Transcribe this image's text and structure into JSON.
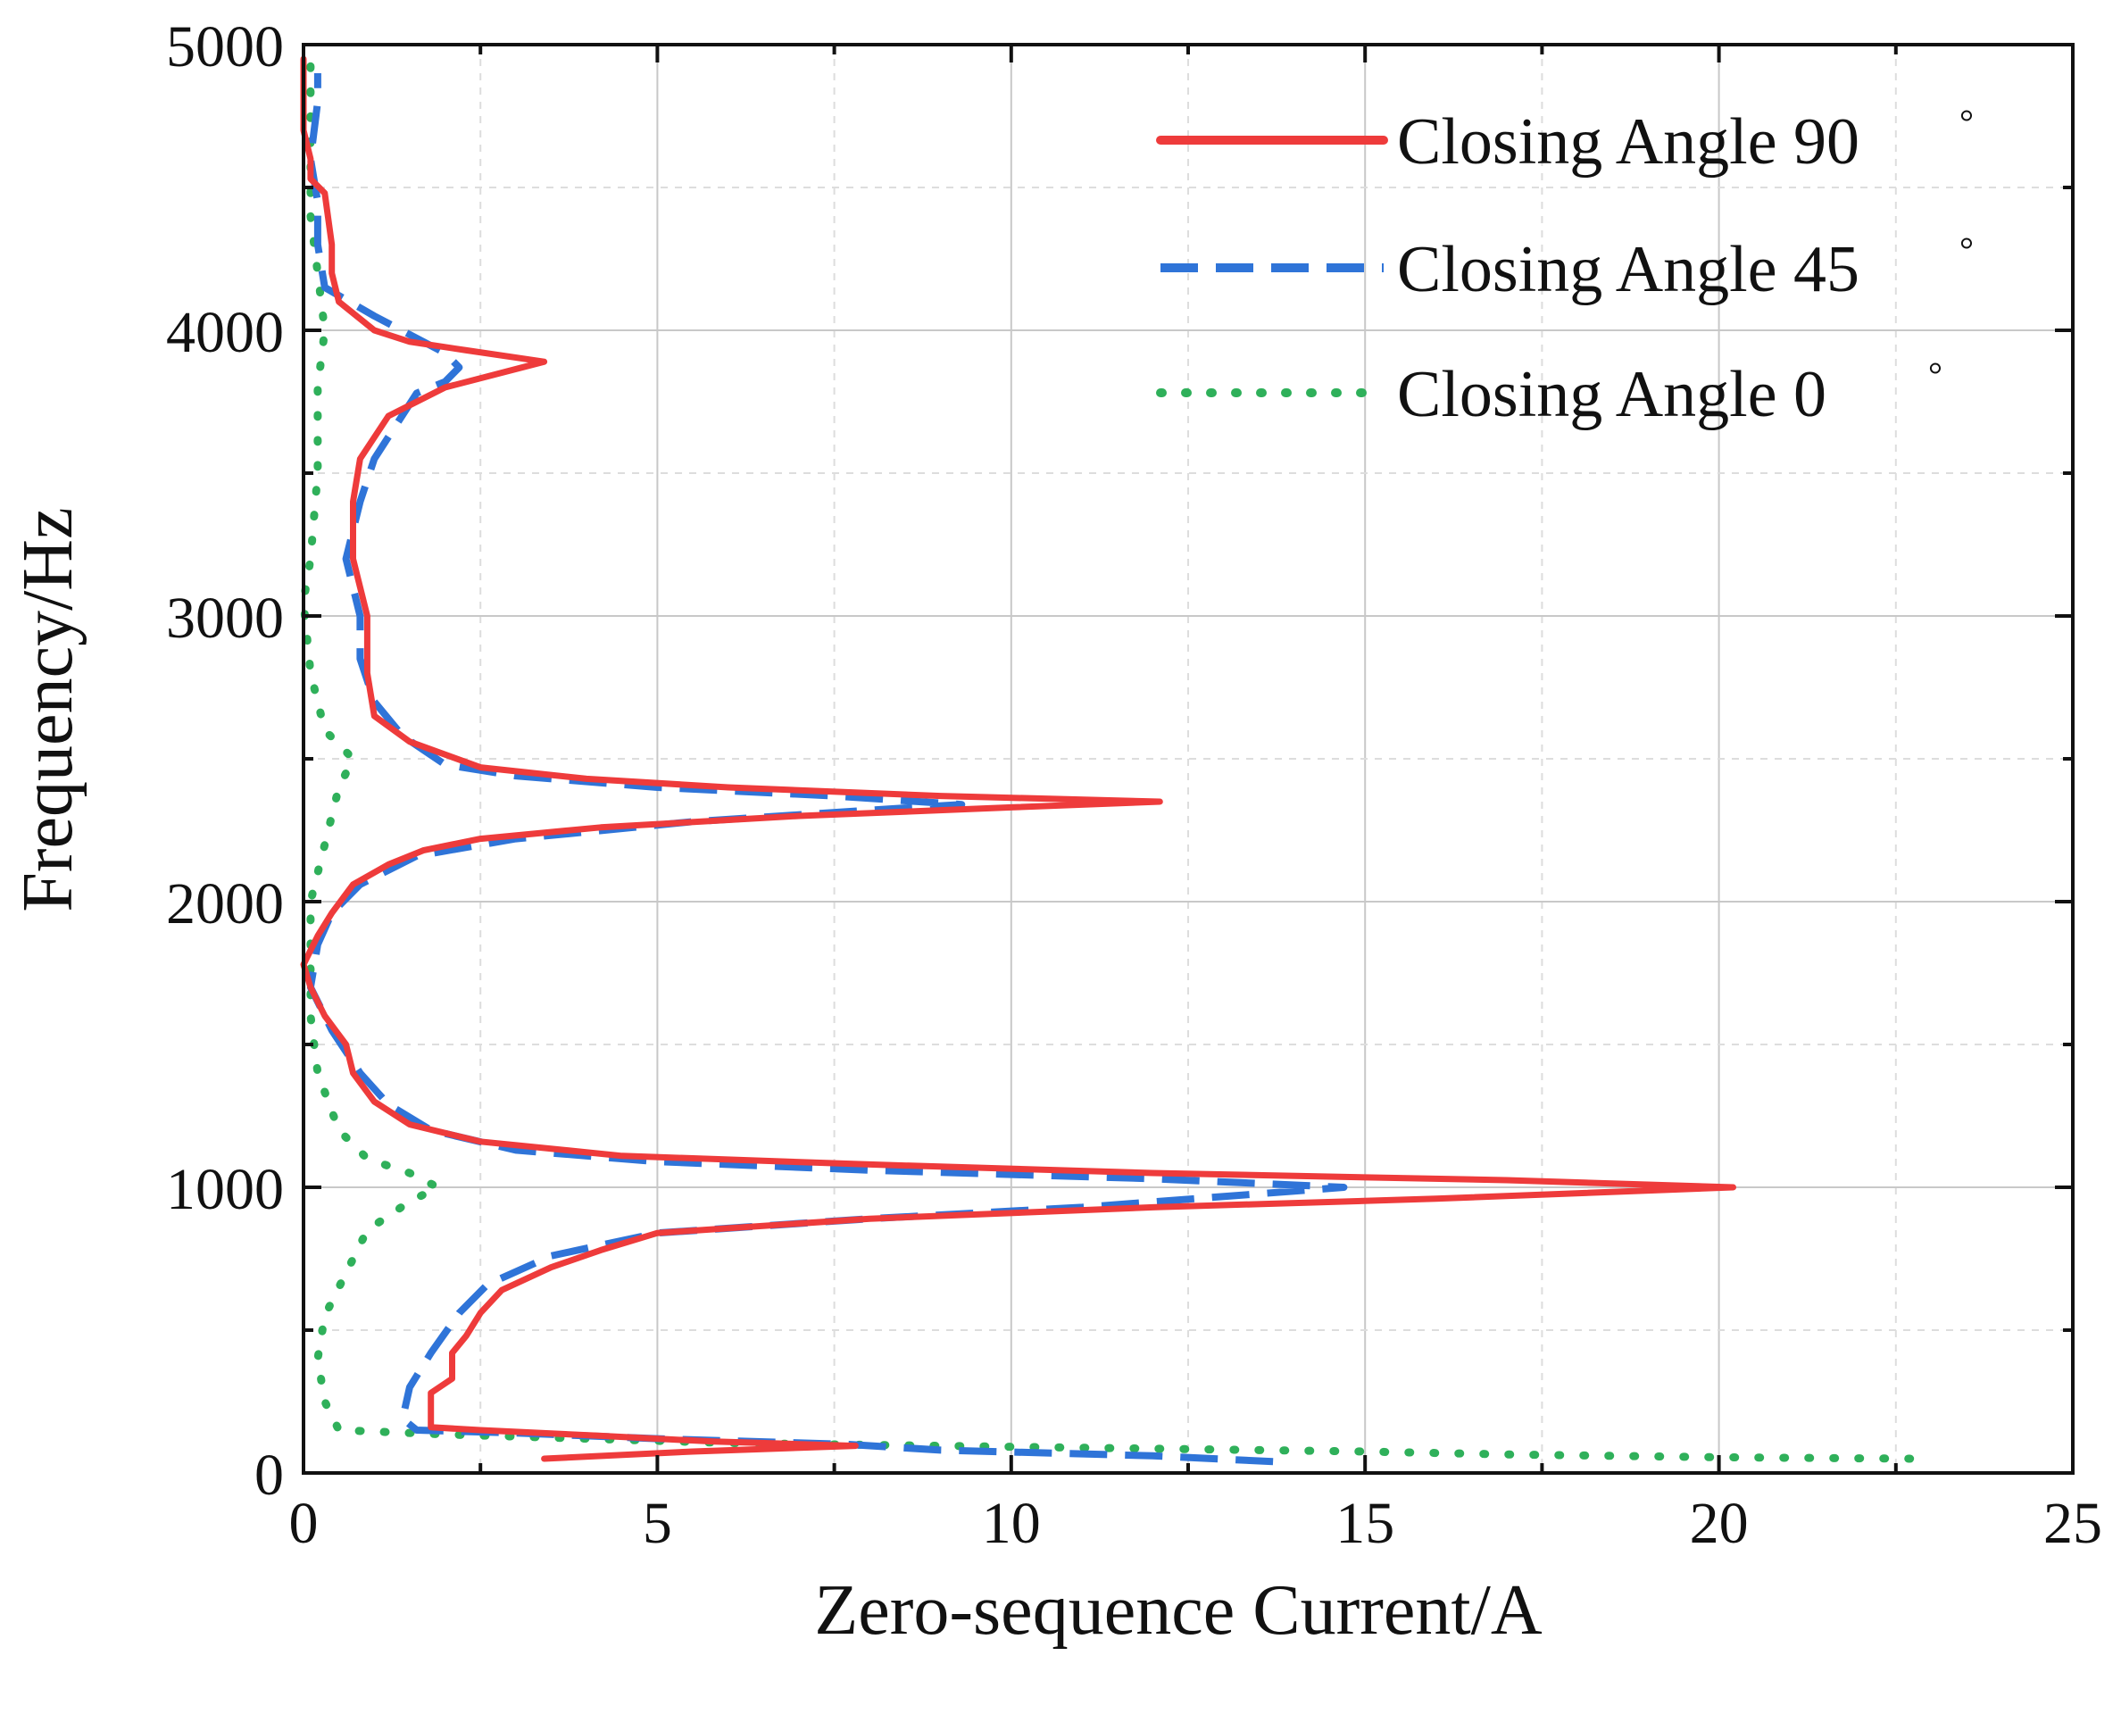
{
  "colors": {
    "series_90": "#ee3b3b",
    "series_45": "#2f74d8",
    "series_0": "#2fb05a",
    "axis": "#111111",
    "grid_major": "#c8c8c8",
    "grid_minor": "#dddddd"
  },
  "chart_data": {
    "type": "line",
    "title": "",
    "xlabel": "Zero-sequence Current/A",
    "ylabel": "Frequency/Hz",
    "xlim": [
      0,
      25
    ],
    "ylim": [
      0,
      5000
    ],
    "xticks": [
      0,
      5,
      10,
      15,
      20,
      25
    ],
    "yticks": [
      0,
      1000,
      2000,
      3000,
      4000,
      5000
    ],
    "xtick_labels": [
      "0",
      "5",
      "10",
      "15",
      "20",
      "25"
    ],
    "ytick_labels": [
      "0",
      "1000",
      "2000",
      "3000",
      "4000",
      "5000"
    ],
    "grid": true,
    "legend": "top-right",
    "series": [
      {
        "name": "Closing Angle 90°",
        "legend_text": "Closing Angle 90",
        "style": "solid",
        "points": [
          [
            3.4,
            50
          ],
          [
            5.5,
            75
          ],
          [
            7.8,
            95
          ],
          [
            5.8,
            110
          ],
          [
            4.2,
            130
          ],
          [
            2.5,
            150
          ],
          [
            1.8,
            160
          ],
          [
            1.8,
            200
          ],
          [
            1.8,
            280
          ],
          [
            2.1,
            330
          ],
          [
            2.1,
            420
          ],
          [
            2.3,
            480
          ],
          [
            2.5,
            560
          ],
          [
            2.8,
            640
          ],
          [
            3.5,
            720
          ],
          [
            4.2,
            780
          ],
          [
            5.0,
            840
          ],
          [
            8.0,
            890
          ],
          [
            12.0,
            930
          ],
          [
            16.0,
            960
          ],
          [
            20.2,
            1000
          ],
          [
            17.0,
            1025
          ],
          [
            12.0,
            1050
          ],
          [
            8.0,
            1080
          ],
          [
            4.5,
            1110
          ],
          [
            2.5,
            1160
          ],
          [
            1.5,
            1220
          ],
          [
            1.0,
            1300
          ],
          [
            0.7,
            1400
          ],
          [
            0.6,
            1500
          ],
          [
            0.3,
            1600
          ],
          [
            0.1,
            1700
          ],
          [
            0.0,
            1780
          ],
          [
            0.2,
            1880
          ],
          [
            0.4,
            1960
          ],
          [
            0.7,
            2060
          ],
          [
            1.2,
            2130
          ],
          [
            1.7,
            2180
          ],
          [
            2.5,
            2220
          ],
          [
            4.2,
            2260
          ],
          [
            7.0,
            2300
          ],
          [
            10.0,
            2330
          ],
          [
            12.1,
            2350
          ],
          [
            9.0,
            2370
          ],
          [
            6.0,
            2400
          ],
          [
            4.0,
            2430
          ],
          [
            2.5,
            2470
          ],
          [
            1.5,
            2560
          ],
          [
            1.0,
            2650
          ],
          [
            0.9,
            2800
          ],
          [
            0.9,
            3000
          ],
          [
            0.7,
            3200
          ],
          [
            0.7,
            3400
          ],
          [
            0.8,
            3550
          ],
          [
            1.2,
            3700
          ],
          [
            2.0,
            3800
          ],
          [
            3.4,
            3890
          ],
          [
            2.3,
            3930
          ],
          [
            1.5,
            3960
          ],
          [
            1.0,
            4000
          ],
          [
            0.5,
            4100
          ],
          [
            0.4,
            4200
          ],
          [
            0.4,
            4300
          ],
          [
            0.3,
            4480
          ],
          [
            0.1,
            4530
          ],
          [
            0.1,
            4600
          ],
          [
            0.0,
            4700
          ],
          [
            0.0,
            4950
          ]
        ]
      },
      {
        "name": "Closing Angle 45°",
        "legend_text": "Closing Angle 45",
        "style": "dashed",
        "points": [
          [
            13.7,
            40
          ],
          [
            12.0,
            60
          ],
          [
            9.0,
            80
          ],
          [
            7.7,
            100
          ],
          [
            5.0,
            120
          ],
          [
            3.0,
            140
          ],
          [
            1.6,
            150
          ],
          [
            1.4,
            190
          ],
          [
            1.5,
            300
          ],
          [
            1.8,
            420
          ],
          [
            2.2,
            560
          ],
          [
            2.6,
            660
          ],
          [
            3.5,
            760
          ],
          [
            5.0,
            840
          ],
          [
            8.0,
            890
          ],
          [
            11.0,
            930
          ],
          [
            14.7,
            1000
          ],
          [
            12.0,
            1030
          ],
          [
            8.0,
            1060
          ],
          [
            5.0,
            1090
          ],
          [
            3.0,
            1130
          ],
          [
            1.8,
            1200
          ],
          [
            1.2,
            1290
          ],
          [
            0.8,
            1400
          ],
          [
            0.4,
            1550
          ],
          [
            0.1,
            1700
          ],
          [
            0.2,
            1850
          ],
          [
            0.4,
            1960
          ],
          [
            0.8,
            2060
          ],
          [
            1.6,
            2160
          ],
          [
            3.0,
            2220
          ],
          [
            5.5,
            2280
          ],
          [
            8.0,
            2320
          ],
          [
            9.3,
            2340
          ],
          [
            7.5,
            2370
          ],
          [
            5.0,
            2400
          ],
          [
            3.0,
            2440
          ],
          [
            2.0,
            2480
          ],
          [
            1.4,
            2580
          ],
          [
            1.0,
            2700
          ],
          [
            0.8,
            2850
          ],
          [
            0.8,
            3000
          ],
          [
            0.6,
            3200
          ],
          [
            0.8,
            3400
          ],
          [
            1.0,
            3550
          ],
          [
            1.6,
            3780
          ],
          [
            2.0,
            3820
          ],
          [
            2.2,
            3870
          ],
          [
            2.0,
            3920
          ],
          [
            1.0,
            4050
          ],
          [
            0.3,
            4150
          ],
          [
            0.2,
            4300
          ],
          [
            0.2,
            4450
          ],
          [
            0.1,
            4600
          ],
          [
            0.2,
            4800
          ],
          [
            0.2,
            4900
          ]
        ]
      },
      {
        "name": "Closing Angle 0°",
        "legend_text": "Closing Angle 0",
        "style": "dotted",
        "points": [
          [
            22.7,
            50
          ],
          [
            20.0,
            55
          ],
          [
            17.0,
            65
          ],
          [
            15.0,
            75
          ],
          [
            12.0,
            85
          ],
          [
            9.0,
            95
          ],
          [
            6.0,
            105
          ],
          [
            4.0,
            120
          ],
          [
            2.0,
            135
          ],
          [
            0.5,
            150
          ],
          [
            0.3,
            250
          ],
          [
            0.2,
            400
          ],
          [
            0.3,
            550
          ],
          [
            0.6,
            700
          ],
          [
            0.9,
            850
          ],
          [
            1.5,
            950
          ],
          [
            1.9,
            1000
          ],
          [
            1.5,
            1050
          ],
          [
            0.9,
            1100
          ],
          [
            0.5,
            1200
          ],
          [
            0.2,
            1400
          ],
          [
            0.1,
            1600
          ],
          [
            0.1,
            1800
          ],
          [
            0.1,
            2000
          ],
          [
            0.3,
            2200
          ],
          [
            0.5,
            2400
          ],
          [
            0.7,
            2500
          ],
          [
            0.3,
            2600
          ],
          [
            0.1,
            2800
          ],
          [
            0.0,
            3050
          ],
          [
            0.1,
            3200
          ],
          [
            0.2,
            3500
          ],
          [
            0.2,
            3800
          ],
          [
            0.3,
            4000
          ],
          [
            0.2,
            4200
          ],
          [
            0.1,
            4400
          ],
          [
            0.1,
            4600
          ],
          [
            0.1,
            4800
          ],
          [
            0.1,
            4950
          ]
        ]
      }
    ]
  }
}
